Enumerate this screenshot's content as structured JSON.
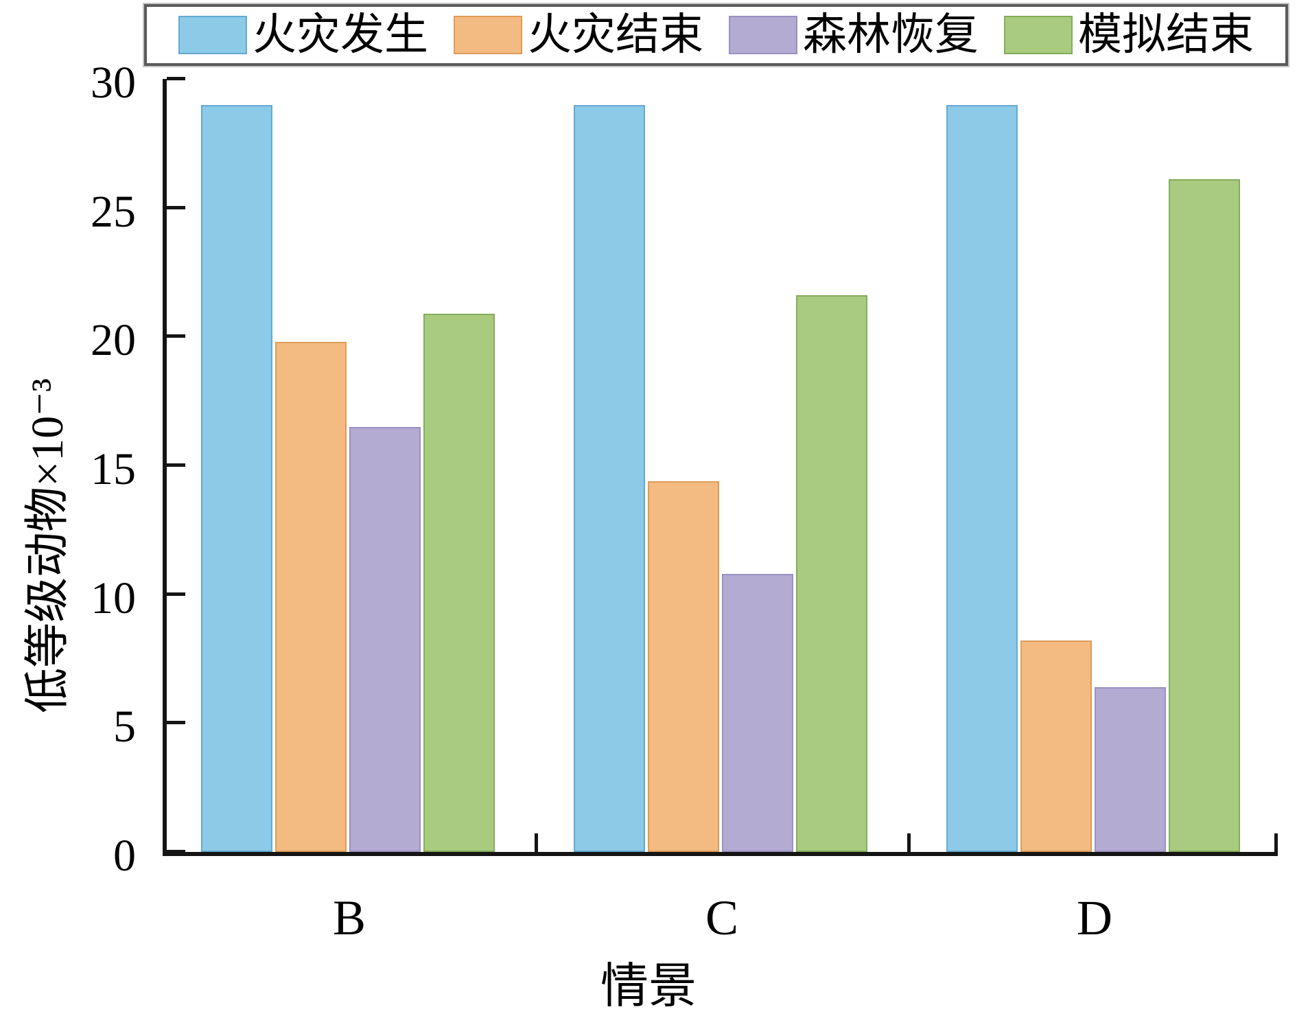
{
  "chart_data": {
    "type": "bar",
    "title": "",
    "xlabel": "情景",
    "ylabel": "低等级动物×10⁻³",
    "categories": [
      "B",
      "C",
      "D"
    ],
    "series": [
      {
        "name": "火灾发生",
        "color": "#8CCAE8",
        "edge_color": "#63AACF",
        "values": [
          29.0,
          29.0,
          29.0
        ]
      },
      {
        "name": "火灾结束",
        "color": "#F3BB82",
        "edge_color": "#DE9C58",
        "values": [
          19.8,
          14.4,
          8.2
        ]
      },
      {
        "name": "森林恢复",
        "color": "#B4ABD2",
        "edge_color": "#9A90C0",
        "values": [
          16.5,
          10.8,
          6.4
        ]
      },
      {
        "name": "模拟结束",
        "color": "#A9CB80",
        "edge_color": "#84AC5A",
        "values": [
          20.9,
          21.6,
          26.1
        ]
      }
    ],
    "ylim": [
      0,
      30
    ],
    "yticks": [
      0,
      5,
      10,
      15,
      20,
      25,
      30
    ],
    "grid": false,
    "legend_position": "top",
    "axis_color": "#151515"
  }
}
